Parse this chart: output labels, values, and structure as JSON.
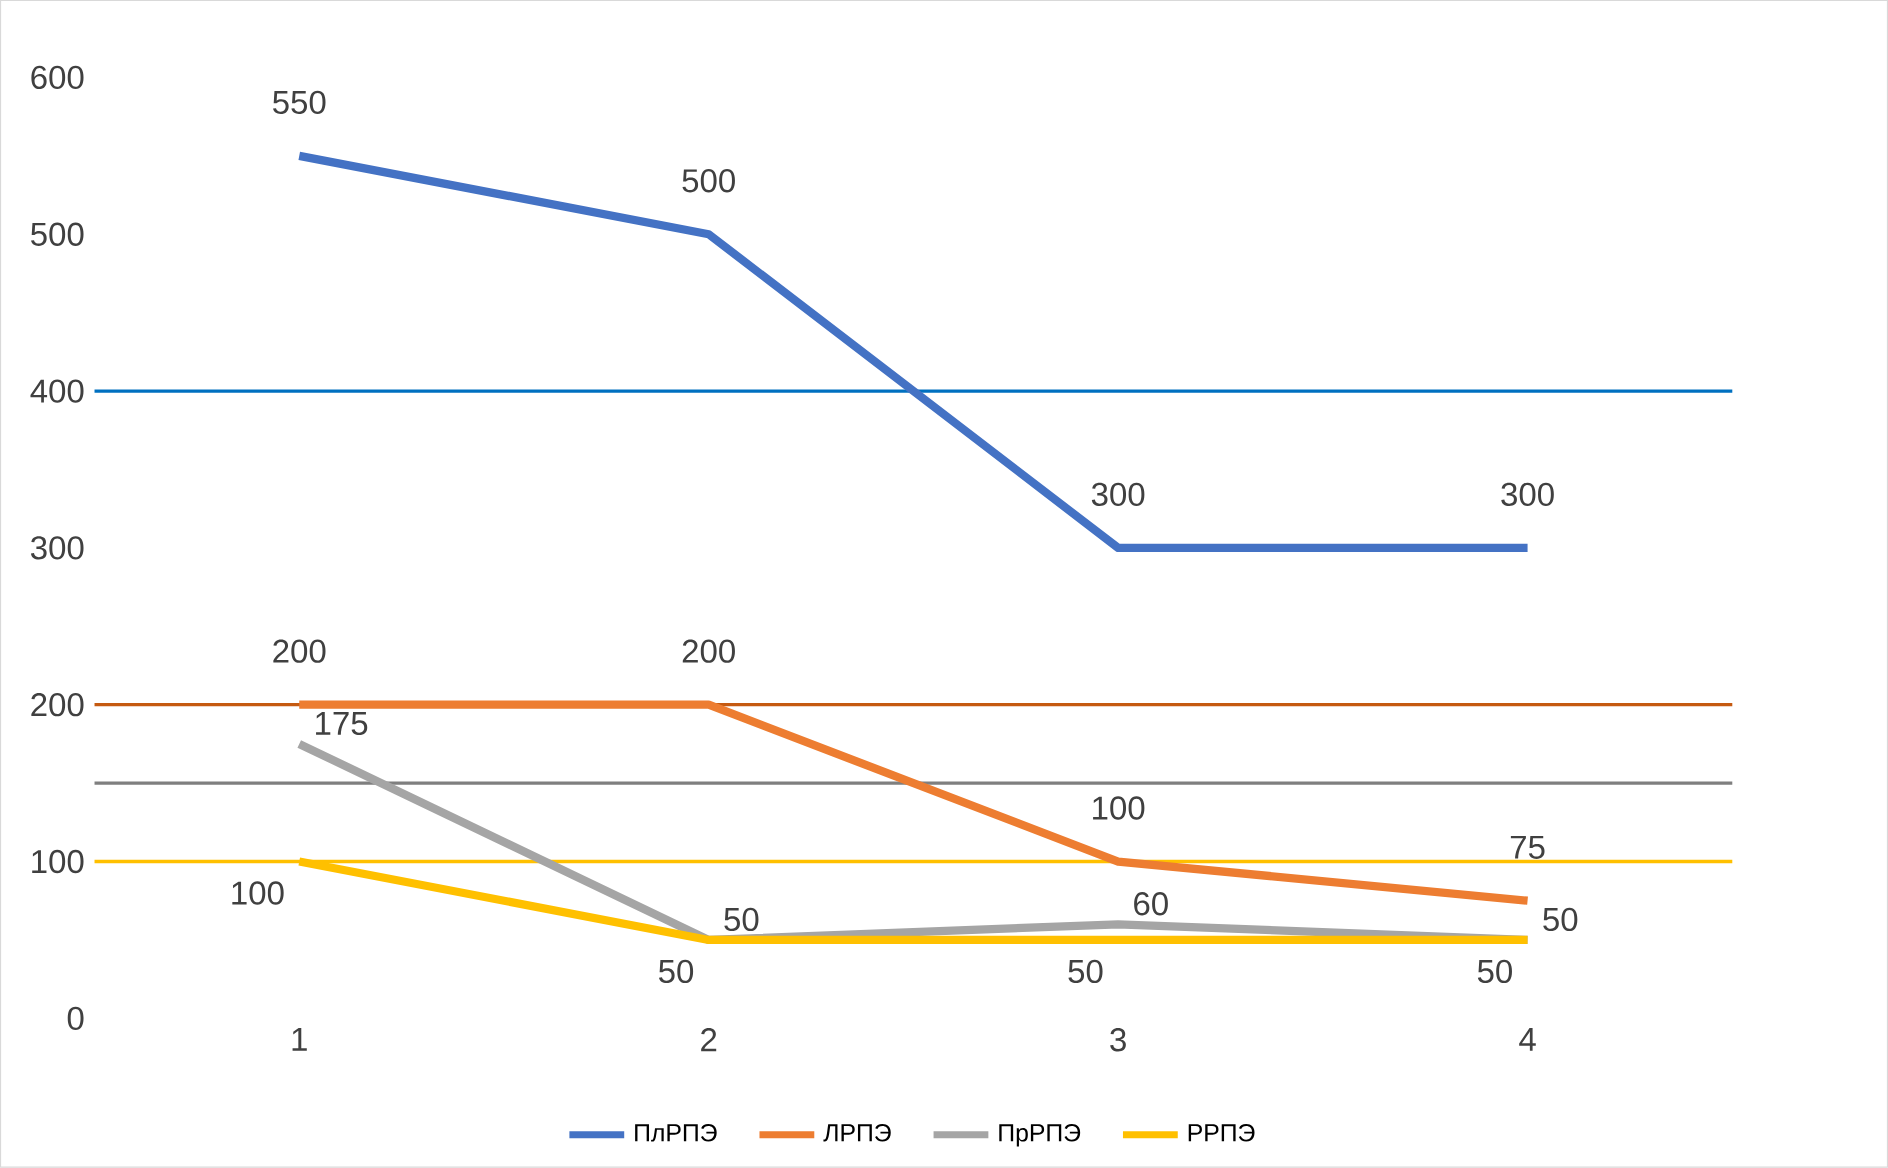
{
  "chart_data": {
    "type": "line",
    "categories": [
      "1",
      "2",
      "3",
      "4"
    ],
    "series": [
      {
        "name": "ПлРПЭ",
        "color": "#4472c4",
        "values": [
          550,
          500,
          300,
          300
        ]
      },
      {
        "name": "ЛРПЭ",
        "color": "#ed7d31",
        "values": [
          200,
          200,
          100,
          75
        ]
      },
      {
        "name": "ПрРПЭ",
        "color": "#a5a5a5",
        "values": [
          175,
          50,
          60,
          50
        ]
      },
      {
        "name": "РРПЭ",
        "color": "#ffc000",
        "values": [
          100,
          50,
          50,
          50
        ]
      }
    ],
    "ylim": [
      0,
      600
    ],
    "yticks": [
      0,
      100,
      200,
      300,
      400,
      500,
      600
    ],
    "ref_lines": [
      {
        "axis": "y",
        "value": 400,
        "color": "#0070c0"
      },
      {
        "axis": "y",
        "value": 200,
        "color": "#c55a11"
      },
      {
        "axis": "y",
        "value": 150,
        "color": "#7f7f7f"
      },
      {
        "axis": "y",
        "value": 100,
        "color": "#ffc000"
      }
    ],
    "data_labels": true,
    "legend": "bottom",
    "grid": false,
    "marker": "none",
    "line_style": "solid"
  }
}
